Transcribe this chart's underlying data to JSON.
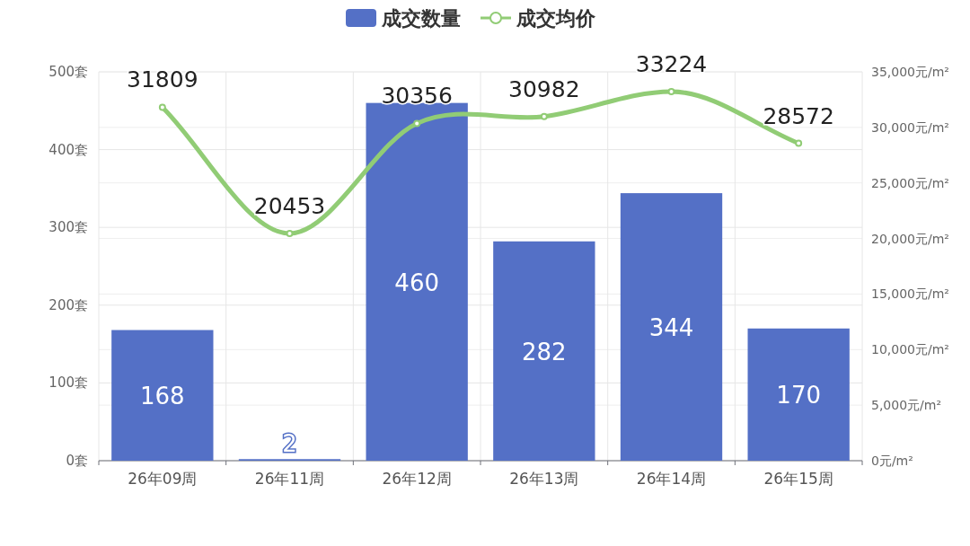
{
  "chart_data": {
    "type": "bar",
    "categories": [
      "26年09周",
      "26年11周",
      "26年12周",
      "26年13周",
      "26年14周",
      "26年15周"
    ],
    "series": [
      {
        "name": "成交数量",
        "color": "#5470c6",
        "values": [
          168,
          2,
          460,
          282,
          344,
          170
        ]
      },
      {
        "name": "成交均价",
        "type": "line",
        "axis": "y2",
        "color": "#91cc75",
        "values": [
          31809,
          20453,
          30356,
          30982,
          33224,
          28572
        ]
      }
    ],
    "ylim": [
      0,
      500
    ],
    "yticks": [
      {
        "value": 0,
        "label": "0套"
      },
      {
        "value": 100,
        "label": "100套"
      },
      {
        "value": 200,
        "label": "200套"
      },
      {
        "value": 300,
        "label": "300套"
      },
      {
        "value": 400,
        "label": "400套"
      },
      {
        "value": 500,
        "label": "500套"
      }
    ],
    "y2lim": [
      0,
      35000
    ],
    "y2ticks": [
      {
        "value": 0,
        "label": "0元/m²"
      },
      {
        "value": 5000,
        "label": "5,000元/m²"
      },
      {
        "value": 10000,
        "label": "10,000元/m²"
      },
      {
        "value": 15000,
        "label": "15,000元/m²"
      },
      {
        "value": 20000,
        "label": "20,000元/m²"
      },
      {
        "value": 25000,
        "label": "25,000元/m²"
      },
      {
        "value": 30000,
        "label": "30,000元/m²"
      },
      {
        "value": 35000,
        "label": "35,000元/m²"
      }
    ],
    "data_labels": true,
    "legend": "top",
    "grid": true,
    "marker": "circle",
    "line_style": "solid"
  }
}
